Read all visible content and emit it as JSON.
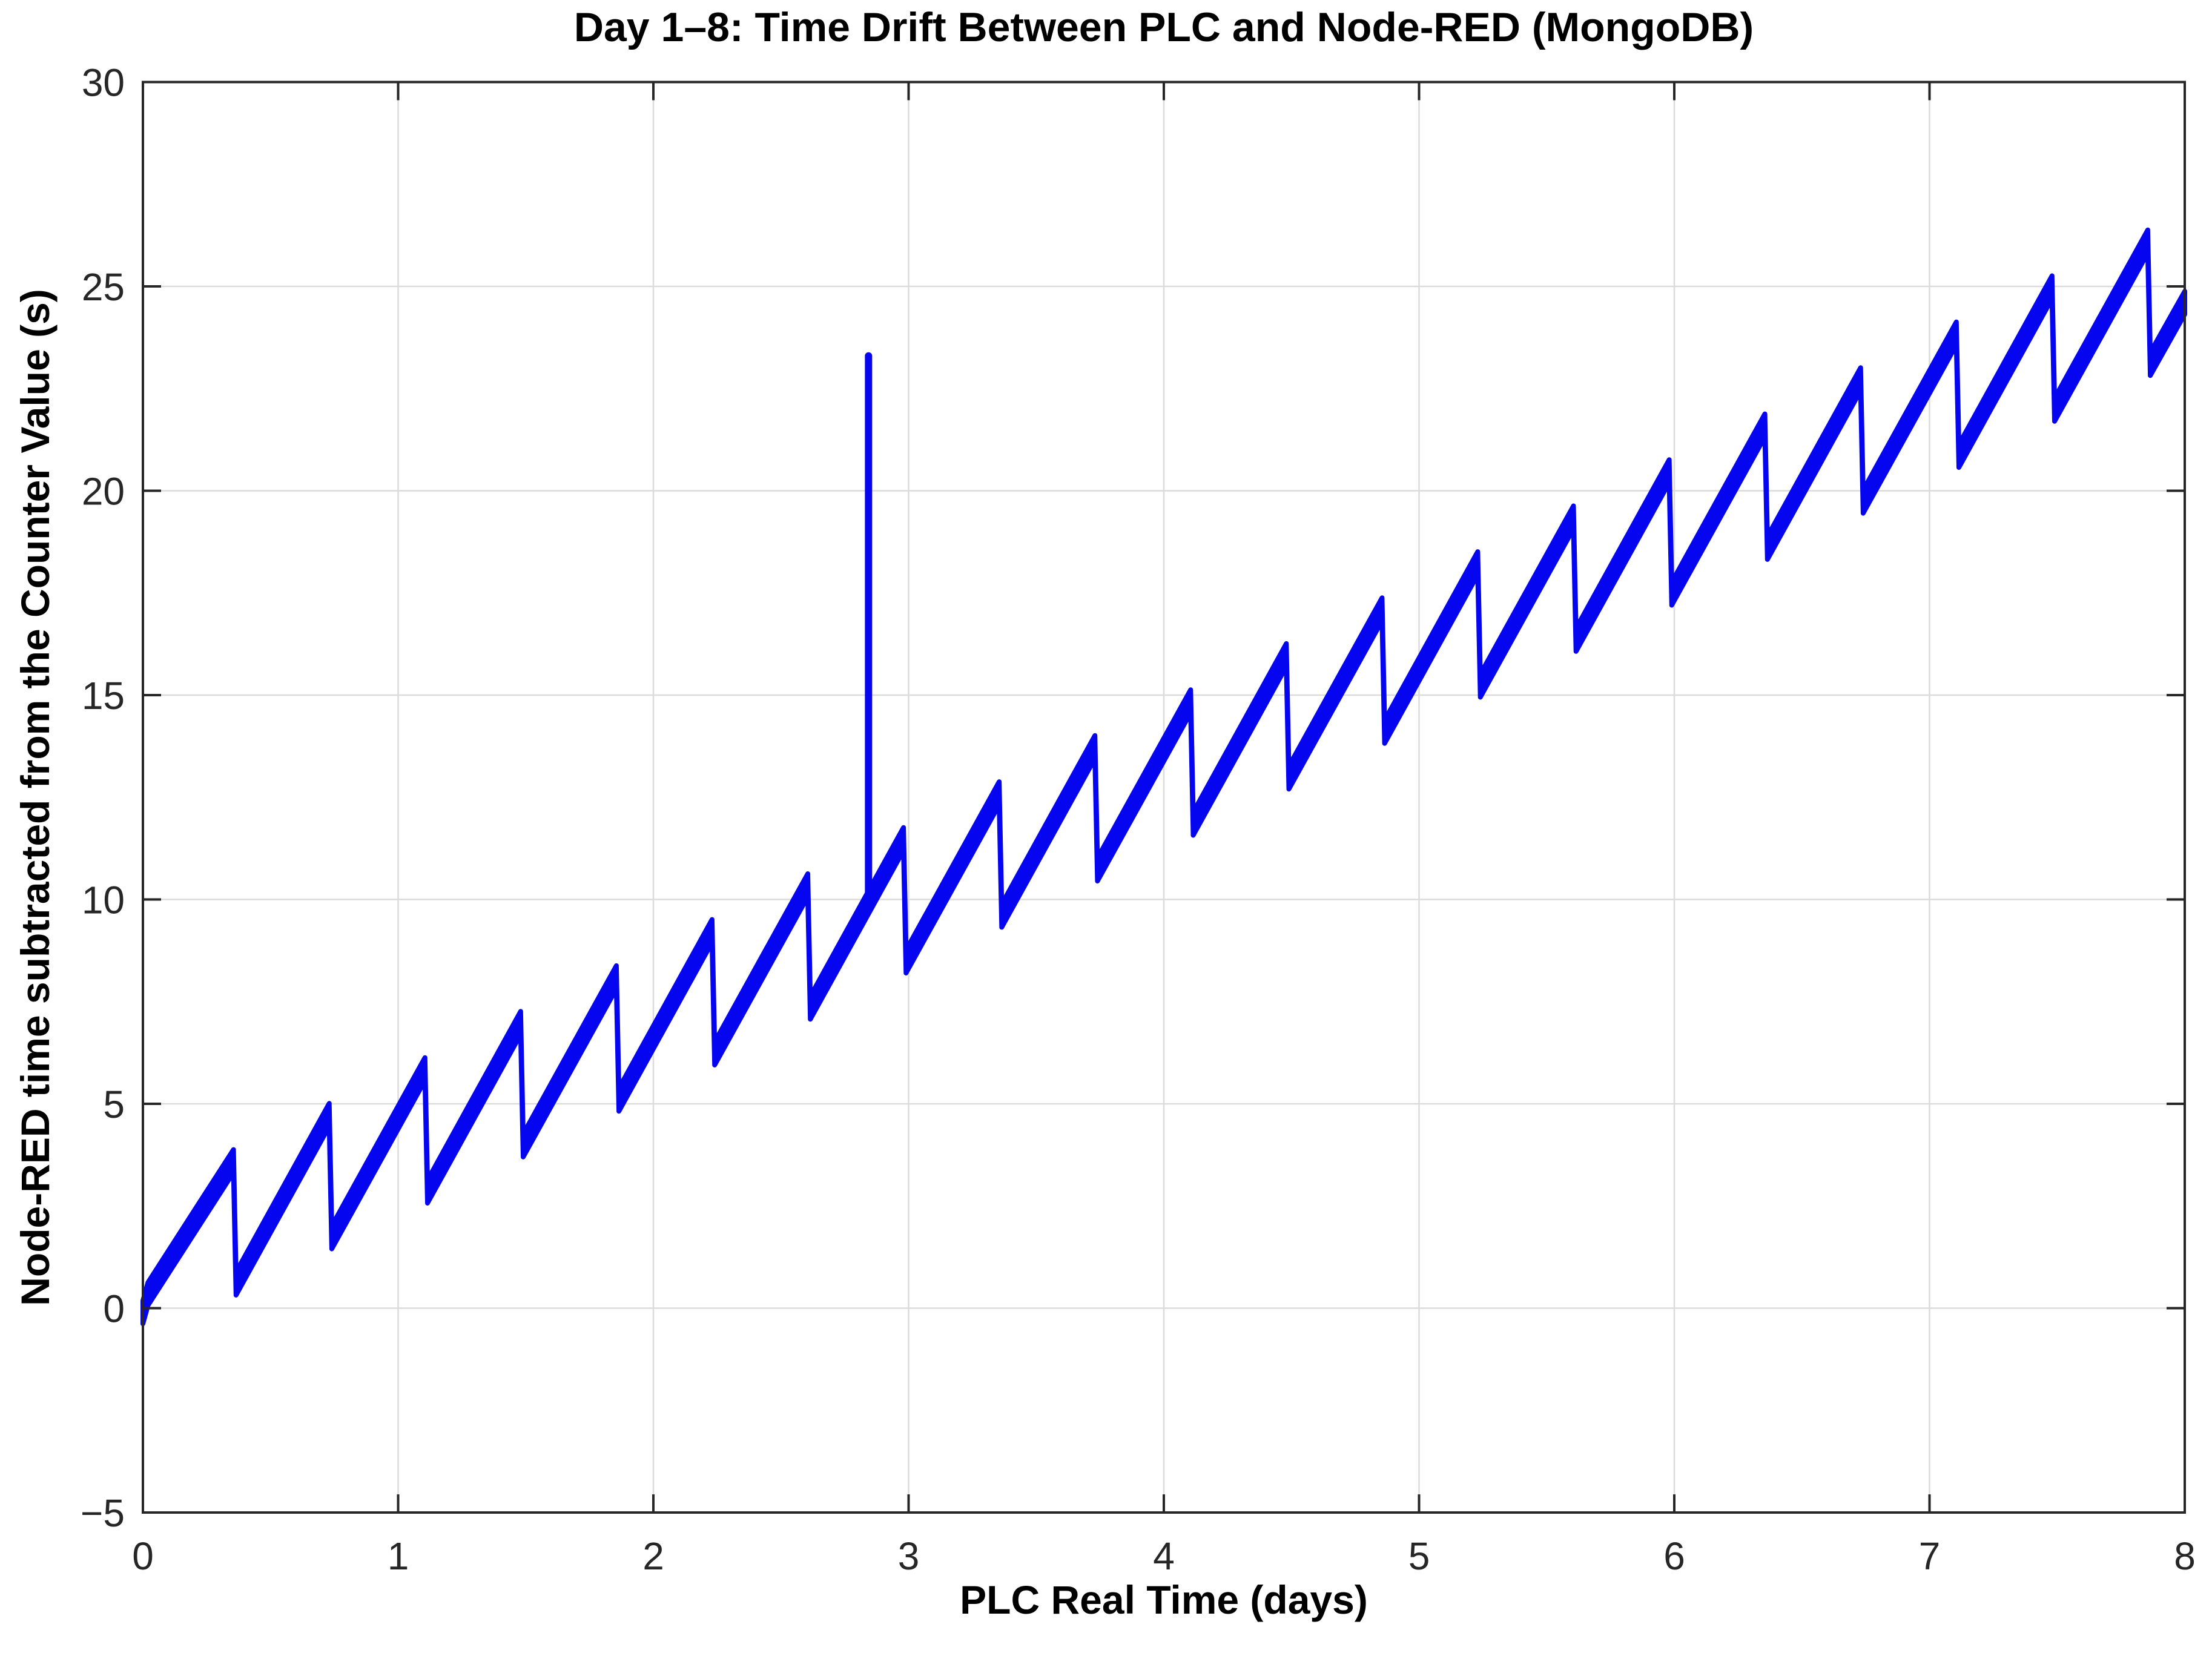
{
  "figure": {
    "background": "#FFFFFF"
  },
  "chart_data": {
    "type": "line",
    "title": "Day 1–8: Time Drift Between PLC and Node-RED (MongoDB)",
    "xlabel": "PLC Real Time (days)",
    "ylabel": "Node-RED time subtracted from the Counter Value (s)",
    "xlim": [
      0,
      8
    ],
    "ylim": [
      -5,
      30
    ],
    "xticks": [
      0,
      1,
      2,
      3,
      4,
      5,
      6,
      7,
      8
    ],
    "xtick_labels": [
      "0",
      "1",
      "2",
      "3",
      "4",
      "5",
      "6",
      "7",
      "8"
    ],
    "yticks": [
      -5,
      0,
      5,
      10,
      15,
      20,
      25,
      30
    ],
    "ytick_labels": [
      "−5",
      "0",
      "5",
      "10",
      "15",
      "20",
      "25",
      "30"
    ],
    "grid": true,
    "legend": "none",
    "colors": {
      "line": "#0505F0",
      "axis": "#262626",
      "grid": "#DBDBDB",
      "text": "#000000"
    },
    "sawtooth": {
      "period_days": 0.375,
      "first_peak_x_days": 0.355,
      "reset_drop_s": 3.0,
      "rise_slope_s_per_day": 11.0,
      "overall_trend_s_per_day": 3.1,
      "band_halfwidth_s": 0.28
    },
    "centerline_points": [
      [
        0.0,
        -0.1
      ],
      [
        0.02,
        0.35
      ],
      [
        0.355,
        3.6
      ],
      [
        0.365,
        0.6
      ],
      [
        0.73,
        4.73
      ],
      [
        0.74,
        1.73
      ],
      [
        1.105,
        5.85
      ],
      [
        1.115,
        2.85
      ],
      [
        1.48,
        6.98
      ],
      [
        1.49,
        3.98
      ],
      [
        1.855,
        8.1
      ],
      [
        1.865,
        5.1
      ],
      [
        2.23,
        9.23
      ],
      [
        2.24,
        6.23
      ],
      [
        2.605,
        10.35
      ],
      [
        2.615,
        7.35
      ],
      [
        2.98,
        11.48
      ],
      [
        2.99,
        8.48
      ],
      [
        3.355,
        12.6
      ],
      [
        3.365,
        9.6
      ],
      [
        3.73,
        13.73
      ],
      [
        3.74,
        10.73
      ],
      [
        4.105,
        14.85
      ],
      [
        4.115,
        11.85
      ],
      [
        4.48,
        15.98
      ],
      [
        4.49,
        12.98
      ],
      [
        4.855,
        17.1
      ],
      [
        4.865,
        14.1
      ],
      [
        5.23,
        18.23
      ],
      [
        5.24,
        15.23
      ],
      [
        5.605,
        19.35
      ],
      [
        5.615,
        16.35
      ],
      [
        5.98,
        20.48
      ],
      [
        5.99,
        17.48
      ],
      [
        6.355,
        21.6
      ],
      [
        6.365,
        18.6
      ],
      [
        6.73,
        22.73
      ],
      [
        6.74,
        19.73
      ],
      [
        7.105,
        23.85
      ],
      [
        7.115,
        20.85
      ],
      [
        7.48,
        24.98
      ],
      [
        7.49,
        21.98
      ],
      [
        7.855,
        26.1
      ],
      [
        7.865,
        23.1
      ],
      [
        8.0,
        24.6
      ]
    ],
    "spike": {
      "x_days": 2.843,
      "y_base_s": 9.9,
      "y_top_s": 23.3
    }
  }
}
